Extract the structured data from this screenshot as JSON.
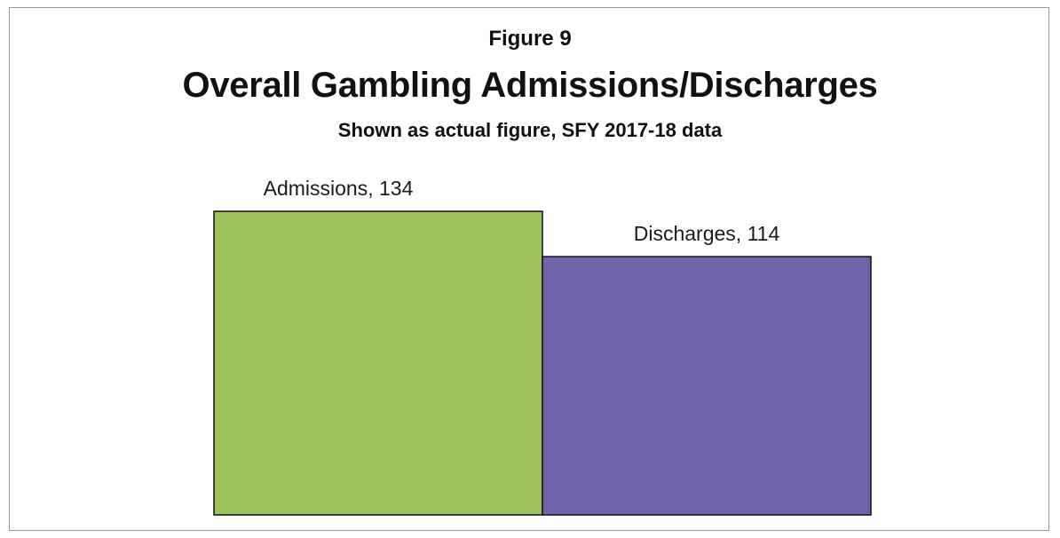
{
  "figure_label": "Figure 9",
  "chart_data": {
    "type": "bar",
    "title": "Overall Gambling Admissions/Discharges",
    "subtitle": "Shown as actual figure, SFY 2017-18 data",
    "categories": [
      "Admissions",
      "Discharges"
    ],
    "values": [
      134,
      114
    ],
    "data_labels": [
      "Admissions, 134",
      "Discharges, 114"
    ],
    "colors": [
      "#9bc25c",
      "#7063aa"
    ],
    "ylim": [
      0,
      134
    ],
    "grid": false,
    "legend": "none",
    "xlabel": "",
    "ylabel": ""
  }
}
